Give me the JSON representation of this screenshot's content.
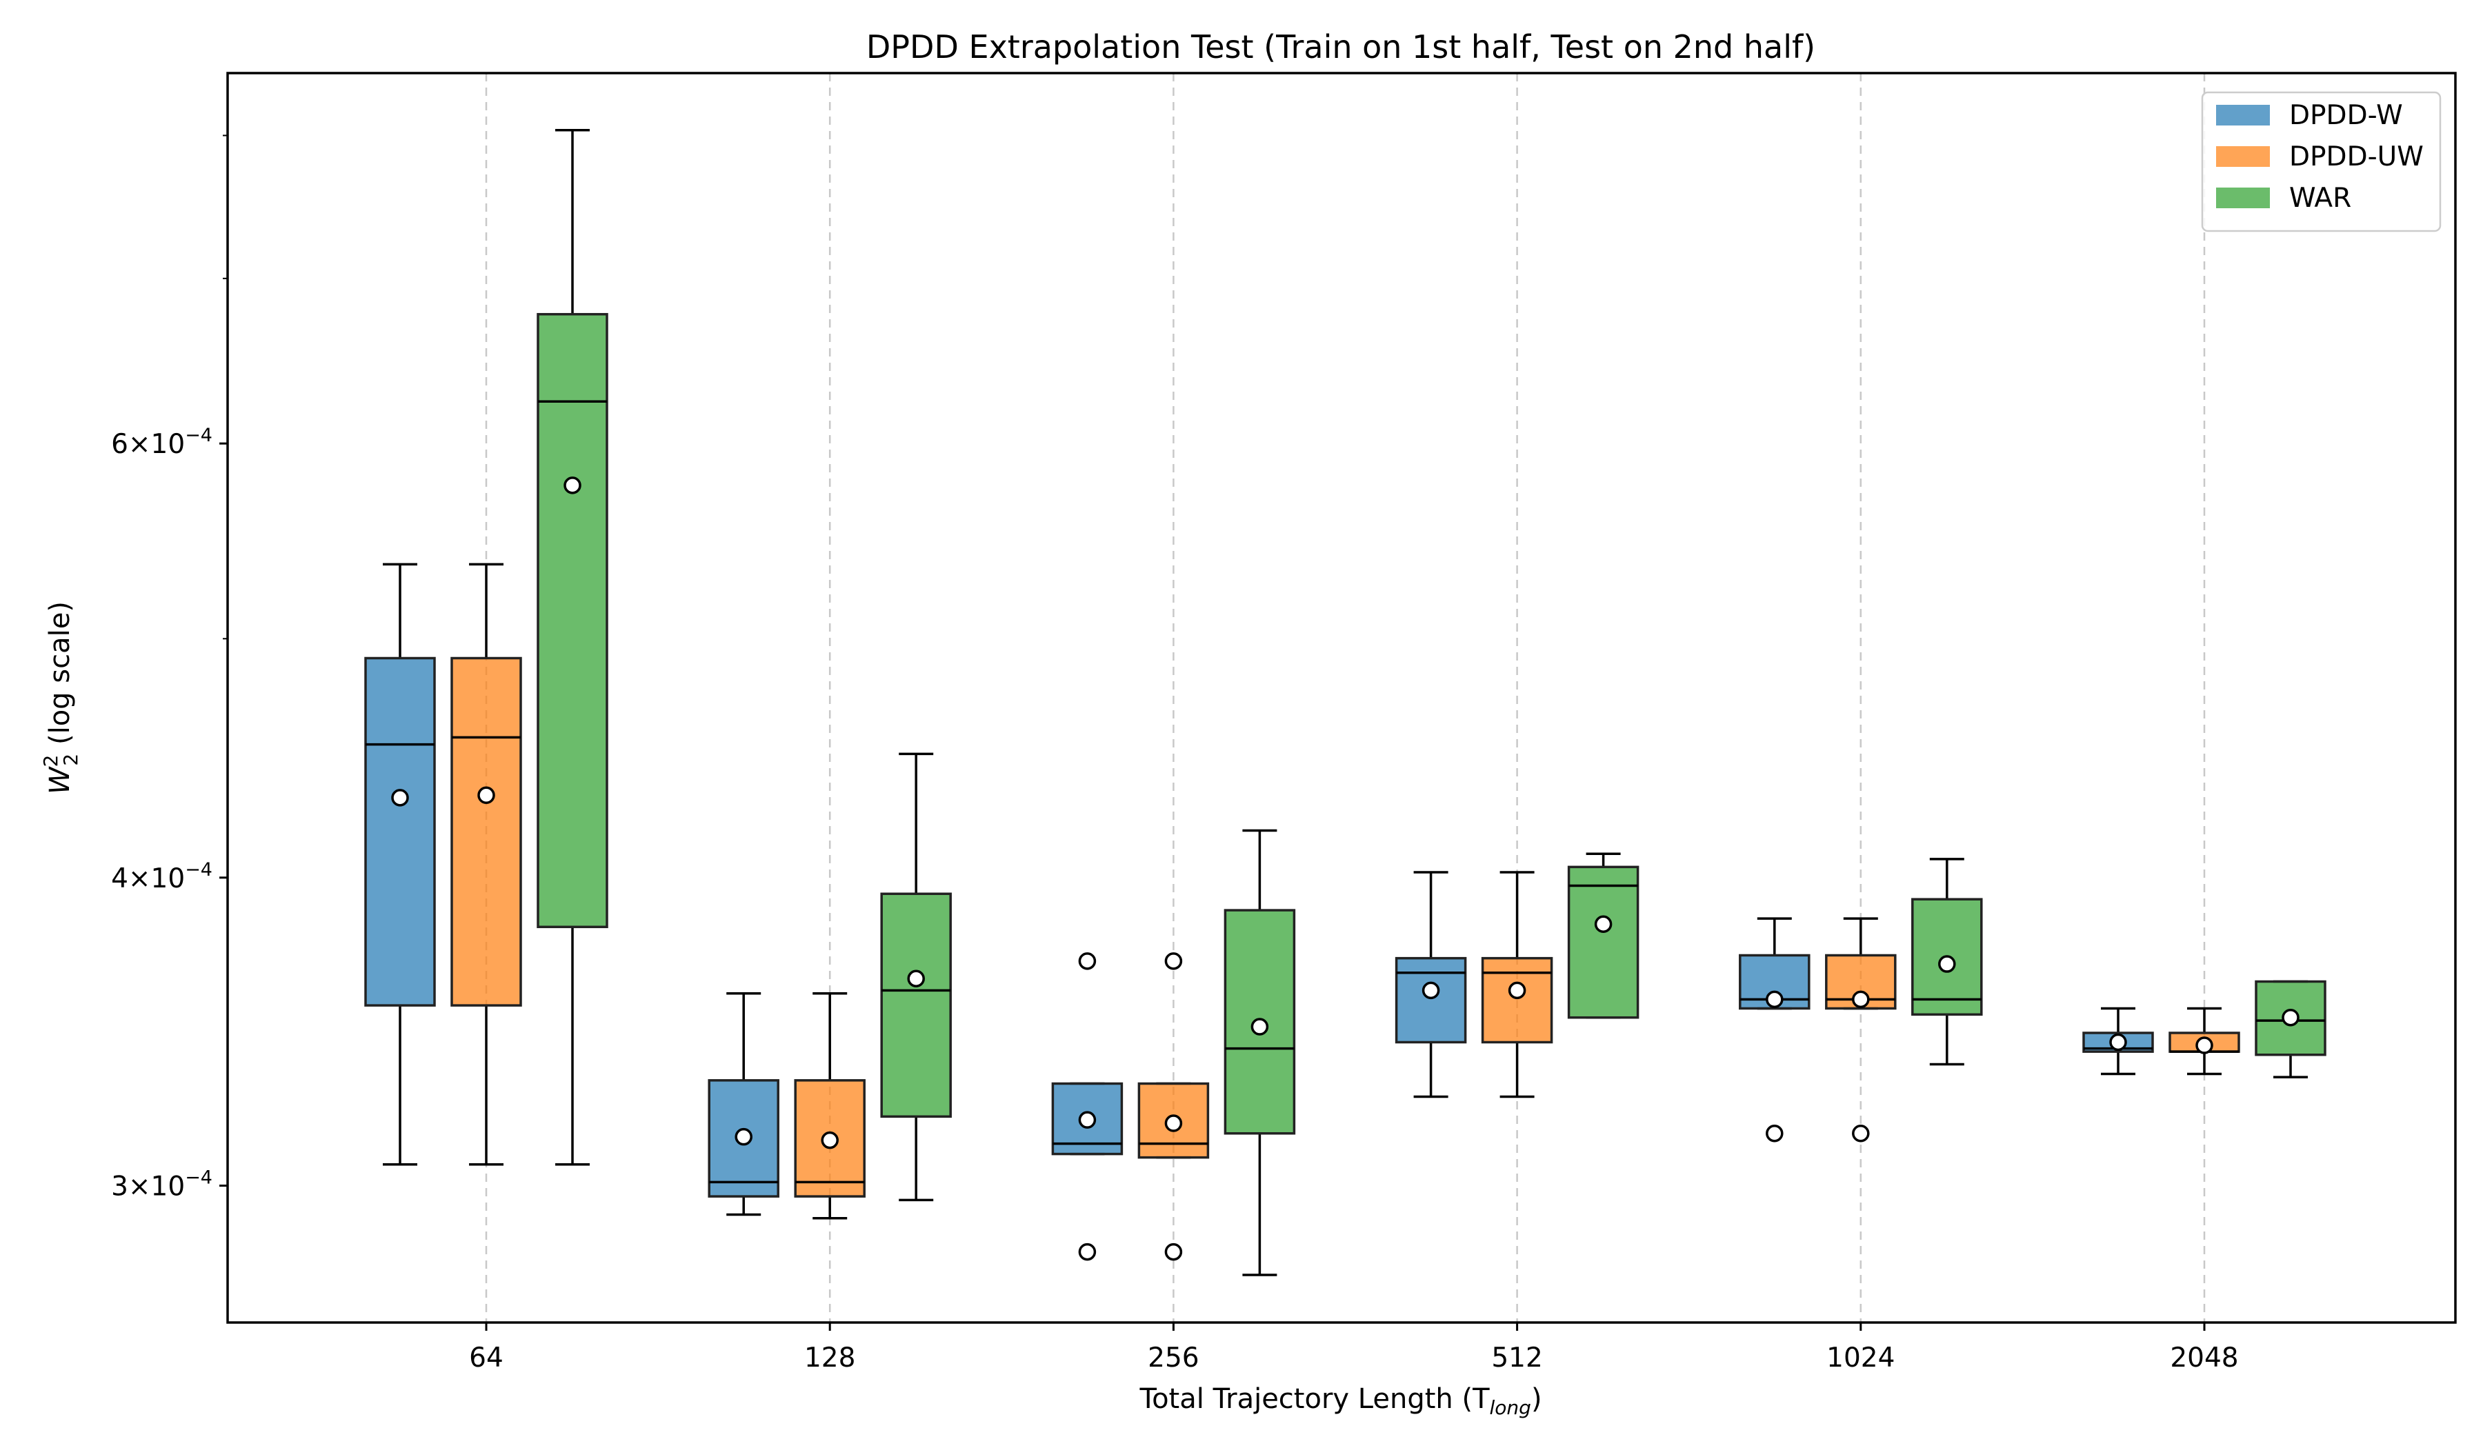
{
  "chart_data": {
    "type": "box",
    "title": "DPDD Extrapolation Test (Train on 1st half, Test on 2nd half)",
    "xlabel": "Total Trajectory Length (T",
    "xlabel_sub": "long",
    "xlabel_close": ")",
    "ylabel": "W",
    "ylabel_sub": "2",
    "ylabel_sup": "2",
    "ylabel_rest": " (log scale)",
    "yscale": "log",
    "ylim": [
      0.000264,
      0.000848
    ],
    "ytick_values": [
      0.0003,
      0.0004,
      0.0006
    ],
    "ytick_labels": [
      {
        "base": "3×10",
        "exp": "−4"
      },
      {
        "base": "4×10",
        "exp": "−4"
      },
      {
        "base": "6×10",
        "exp": "−4"
      }
    ],
    "yminor_values": [
      0.0005,
      0.0007,
      0.0008
    ],
    "categories": [
      "64",
      "128",
      "256",
      "512",
      "1024",
      "2048"
    ],
    "legend": {
      "position": "top-right",
      "entries": [
        "DPDD-W",
        "DPDD-UW",
        "WAR"
      ]
    },
    "series": [
      {
        "name": "DPDD-W",
        "color": "#1f77b4",
        "boxes": [
          {
            "whislo": 0.000306,
            "q1": 0.000355,
            "med": 0.000453,
            "q3": 0.000491,
            "whishi": 0.000536,
            "mean": 0.000431,
            "fliers": []
          },
          {
            "whislo": 0.000292,
            "q1": 0.000297,
            "med": 0.000301,
            "q3": 0.000331,
            "whishi": 0.000359,
            "mean": 0.000314,
            "fliers": []
          },
          {
            "whislo": 0.000309,
            "q1": 0.000309,
            "med": 0.000312,
            "q3": 0.00033,
            "whishi": 0.00033,
            "mean": 0.000319,
            "fliers": [
              0.00037,
              0.000282
            ]
          },
          {
            "whislo": 0.000326,
            "q1": 0.000343,
            "med": 0.000366,
            "q3": 0.000371,
            "whishi": 0.000402,
            "mean": 0.00036,
            "fliers": []
          },
          {
            "whislo": 0.000354,
            "q1": 0.000354,
            "med": 0.000357,
            "q3": 0.000372,
            "whishi": 0.000385,
            "mean": 0.000357,
            "fliers": [
              0.000315
            ]
          },
          {
            "whislo": 0.000333,
            "q1": 0.00034,
            "med": 0.000341,
            "q3": 0.000346,
            "whishi": 0.000354,
            "mean": 0.000343,
            "fliers": []
          }
        ]
      },
      {
        "name": "DPDD-UW",
        "color": "#ff7f0e",
        "boxes": [
          {
            "whislo": 0.000306,
            "q1": 0.000355,
            "med": 0.000456,
            "q3": 0.000491,
            "whishi": 0.000536,
            "mean": 0.000432,
            "fliers": []
          },
          {
            "whislo": 0.000291,
            "q1": 0.000297,
            "med": 0.000301,
            "q3": 0.000331,
            "whishi": 0.000359,
            "mean": 0.000313,
            "fliers": []
          },
          {
            "whislo": 0.000308,
            "q1": 0.000308,
            "med": 0.000312,
            "q3": 0.00033,
            "whishi": 0.00033,
            "mean": 0.000318,
            "fliers": [
              0.00037,
              0.000282
            ]
          },
          {
            "whislo": 0.000326,
            "q1": 0.000343,
            "med": 0.000366,
            "q3": 0.000371,
            "whishi": 0.000402,
            "mean": 0.00036,
            "fliers": []
          },
          {
            "whislo": 0.000354,
            "q1": 0.000354,
            "med": 0.000357,
            "q3": 0.000372,
            "whishi": 0.000385,
            "mean": 0.000357,
            "fliers": [
              0.000315
            ]
          },
          {
            "whislo": 0.000333,
            "q1": 0.00034,
            "med": 0.00034,
            "q3": 0.000346,
            "whishi": 0.000354,
            "mean": 0.000342,
            "fliers": []
          }
        ]
      },
      {
        "name": "WAR",
        "color": "#2ca02c",
        "boxes": [
          {
            "whislo": 0.000306,
            "q1": 0.000382,
            "med": 0.000624,
            "q3": 0.000677,
            "whishi": 0.000804,
            "mean": 0.000577,
            "fliers": []
          },
          {
            "whislo": 0.000296,
            "q1": 0.00032,
            "med": 0.00036,
            "q3": 0.000394,
            "whishi": 0.000449,
            "mean": 0.000364,
            "fliers": []
          },
          {
            "whislo": 0.000276,
            "q1": 0.000315,
            "med": 0.000341,
            "q3": 0.000388,
            "whishi": 0.000418,
            "mean": 0.000348,
            "fliers": []
          },
          {
            "whislo": 0.000351,
            "q1": 0.000351,
            "med": 0.000397,
            "q3": 0.000404,
            "whishi": 0.000409,
            "mean": 0.000383,
            "fliers": []
          },
          {
            "whislo": 0.000336,
            "q1": 0.000352,
            "med": 0.000357,
            "q3": 0.000392,
            "whishi": 0.000407,
            "mean": 0.000369,
            "fliers": []
          },
          {
            "whislo": 0.000332,
            "q1": 0.000339,
            "med": 0.00035,
            "q3": 0.000363,
            "whishi": 0.000363,
            "mean": 0.000351,
            "fliers": []
          }
        ]
      }
    ]
  }
}
